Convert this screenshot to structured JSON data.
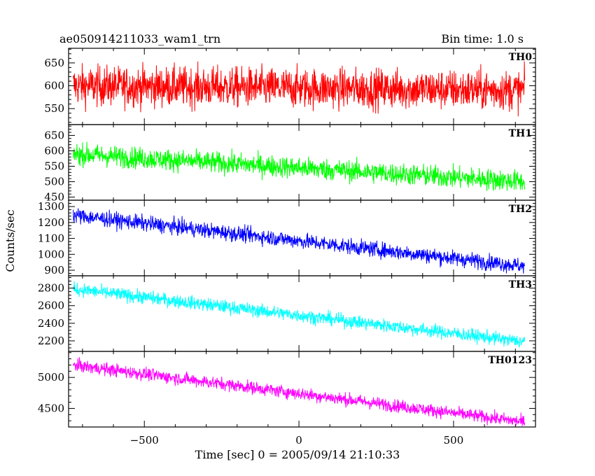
{
  "header": {
    "title": "ae050914211033_wam1_trn",
    "bin_time": "Bin time: 1.0 s"
  },
  "chart_data": {
    "type": "line",
    "xlabel": "Time [sec] 0 = 2005/09/14 21:10:33",
    "ylabel": "Counts/sec",
    "xlim": [
      -745,
      765
    ],
    "x_range": [
      -730,
      730
    ],
    "x_ticks": [
      -500,
      0,
      500
    ],
    "panels": [
      {
        "name": "TH0",
        "color": "#ff0000",
        "ylim": [
          515,
          682
        ],
        "y_ticks": [
          550,
          600,
          650
        ],
        "trend": {
          "x": [
            -730,
            730
          ],
          "y": [
            600,
            590
          ]
        },
        "noise_amplitude": 40
      },
      {
        "name": "TH1",
        "color": "#00ff00",
        "ylim": [
          440,
          685
        ],
        "y_ticks": [
          450,
          500,
          550,
          600,
          650
        ],
        "trend": {
          "x": [
            -730,
            730
          ],
          "y": [
            590,
            500
          ]
        },
        "noise_amplitude": 32
      },
      {
        "name": "TH2",
        "color": "#0000ff",
        "ylim": [
          865,
          1340
        ],
        "y_ticks": [
          900,
          1000,
          1100,
          1200,
          1300
        ],
        "trend": {
          "x": [
            -730,
            730
          ],
          "y": [
            1245,
            925
          ]
        },
        "noise_amplitude": 45
      },
      {
        "name": "TH3",
        "color": "#00ffff",
        "ylim": [
          2080,
          2940
        ],
        "y_ticks": [
          2200,
          2400,
          2600,
          2800
        ],
        "trend": {
          "x": [
            -730,
            730
          ],
          "y": [
            2790,
            2190
          ]
        },
        "noise_amplitude": 70
      },
      {
        "name": "TH0123",
        "color": "#ff00ff",
        "ylim": [
          4200,
          5420
        ],
        "y_ticks": [
          4500,
          5000
        ],
        "trend": {
          "x": [
            -730,
            730
          ],
          "y": [
            5200,
            4280
          ]
        },
        "noise_amplitude": 95
      }
    ]
  }
}
